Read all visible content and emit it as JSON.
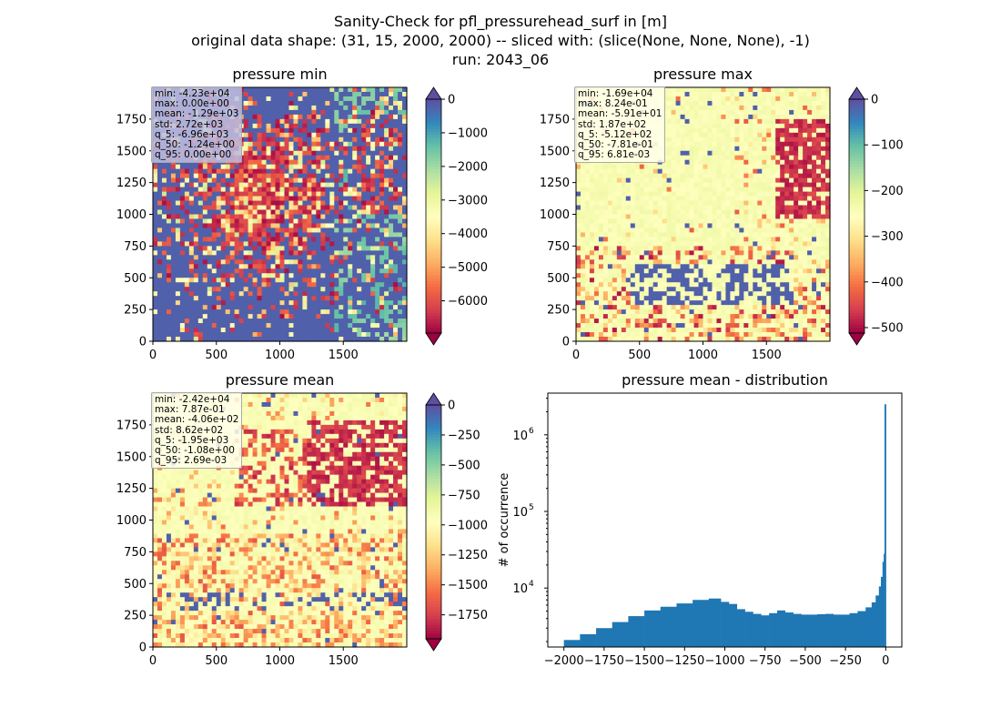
{
  "figure": {
    "title_lines": [
      "Sanity-Check for pfl_pressurehead_surf in [m]",
      "original data shape: (31, 15, 2000, 2000) -- sliced with: (slice(None, None, None), -1)",
      "run: 2043_06"
    ]
  },
  "panels": {
    "min": {
      "title": "pressure min",
      "stats": [
        "min: -4.23e+04",
        "max: 0.00e+00",
        "mean: -1.29e+03",
        "std: 2.72e+03",
        "q_5: -6.96e+03",
        "q_50: -1.24e+00",
        "q_95: 0.00e+00"
      ]
    },
    "max": {
      "title": "pressure max",
      "stats": [
        "min: -1.69e+04",
        "max: 8.24e-01",
        "mean: -5.91e+01",
        "std: 1.87e+02",
        "q_5: -5.12e+02",
        "q_50: -7.81e-01",
        "q_95: 6.81e-03"
      ]
    },
    "mean": {
      "title": "pressure mean",
      "stats": [
        "min: -2.42e+04",
        "max: 7.87e-01",
        "mean: -4.06e+02",
        "std: 8.62e+02",
        "q_5: -1.95e+03",
        "q_50: -1.08e+00",
        "q_95: 2.69e-03"
      ]
    },
    "hist": {
      "title": "pressure mean - distribution",
      "ylabel": "# of occurrence"
    }
  },
  "chart_data": [
    {
      "type": "heatmap",
      "title": "pressure min",
      "colormap": "Spectral",
      "x_ticks": [
        0,
        500,
        1000,
        1500
      ],
      "y_ticks": [
        0,
        250,
        500,
        750,
        1000,
        1250,
        1500,
        1750
      ],
      "xlim": [
        0,
        2000
      ],
      "ylim": [
        0,
        2000
      ],
      "colorbar": {
        "range": [
          -6960,
          0
        ],
        "ticks": [
          0,
          -1000,
          -2000,
          -3000,
          -4000,
          -5000,
          -6000
        ],
        "extend": "both"
      }
    },
    {
      "type": "heatmap",
      "title": "pressure max",
      "colormap": "Spectral",
      "x_ticks": [
        0,
        500,
        1000,
        1500
      ],
      "y_ticks": [
        0,
        250,
        500,
        750,
        1000,
        1250,
        1500,
        1750
      ],
      "xlim": [
        0,
        2000
      ],
      "ylim": [
        0,
        2000
      ],
      "colorbar": {
        "range": [
          -512,
          0.00681
        ],
        "ticks": [
          0,
          -100,
          -200,
          -300,
          -400,
          -500
        ],
        "extend": "both"
      }
    },
    {
      "type": "heatmap",
      "title": "pressure mean",
      "colormap": "Spectral",
      "x_ticks": [
        0,
        500,
        1000,
        1500
      ],
      "y_ticks": [
        0,
        250,
        500,
        750,
        1000,
        1250,
        1500,
        1750
      ],
      "xlim": [
        0,
        2000
      ],
      "ylim": [
        0,
        2000
      ],
      "colorbar": {
        "range": [
          -1950,
          0.00269
        ],
        "ticks": [
          0,
          -250,
          -500,
          -750,
          -1000,
          -1250,
          -1500,
          -1750
        ],
        "extend": "both"
      }
    },
    {
      "type": "bar",
      "title": "pressure mean - distribution",
      "xlabel": "",
      "ylabel": "# of occurrence",
      "y_scale": "log",
      "x_ticks": [
        -2000,
        -1750,
        -1500,
        -1250,
        -1000,
        -750,
        -500,
        -250,
        0
      ],
      "y_ticks": [
        10000,
        100000,
        1000000
      ],
      "xlim": [
        -2100,
        100
      ],
      "ylim": [
        1700,
        3500000
      ],
      "bar_color": "#1f77b4",
      "bins_x": [
        -1950,
        -1850,
        -1750,
        -1650,
        -1550,
        -1450,
        -1350,
        -1250,
        -1150,
        -1050,
        -1000,
        -950,
        -900,
        -850,
        -800,
        -750,
        -700,
        -650,
        -600,
        -550,
        -500,
        -450,
        -400,
        -350,
        -300,
        -250,
        -200,
        -150,
        -100,
        -75,
        -50,
        -35,
        -25,
        -15,
        -10,
        -5,
        0
      ],
      "bins_y": [
        2100,
        2500,
        3000,
        3600,
        4300,
        5100,
        5700,
        6300,
        7000,
        7300,
        6600,
        6200,
        5300,
        4900,
        4600,
        4400,
        4700,
        5100,
        4800,
        4600,
        4500,
        4500,
        4550,
        4600,
        4500,
        4500,
        4700,
        5000,
        5600,
        6500,
        8000,
        10500,
        14000,
        22000,
        28000,
        2500000,
        2500000
      ]
    }
  ]
}
